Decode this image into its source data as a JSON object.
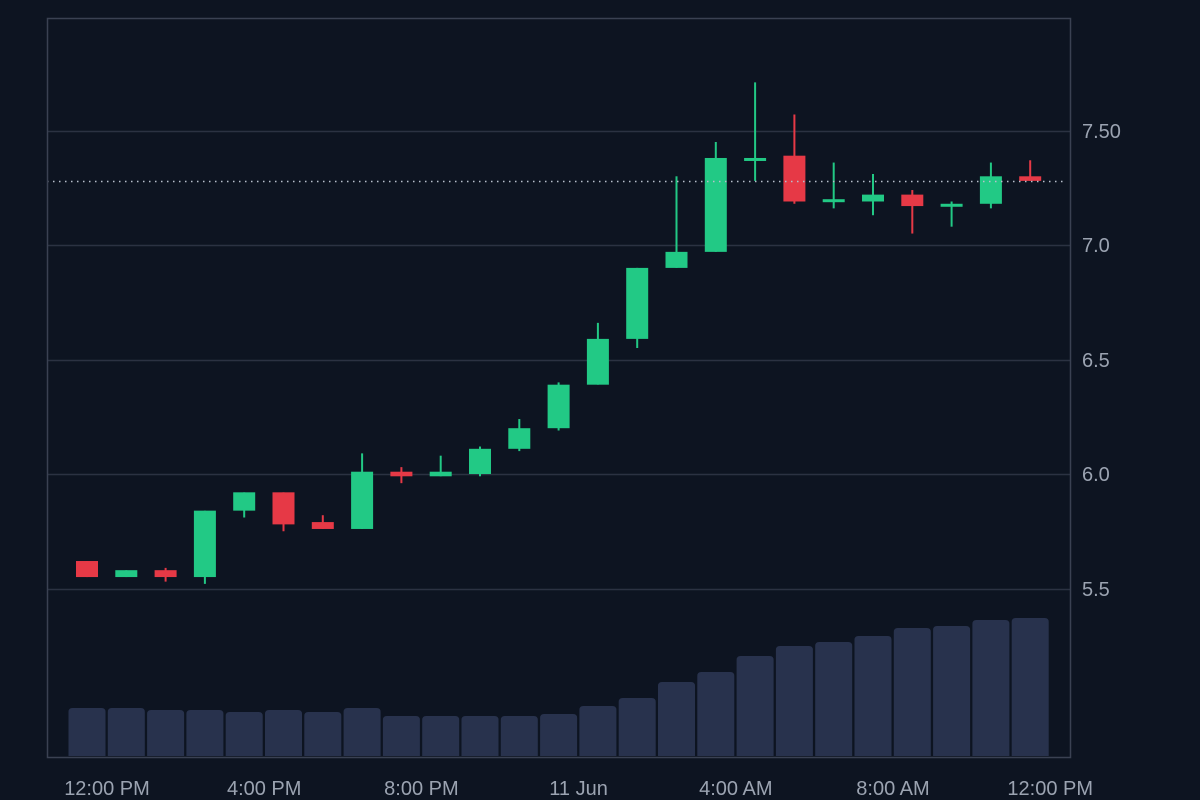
{
  "colors": {
    "background": "#0d1421",
    "frame": "#3a4152",
    "grid": "#2b3242",
    "axis_text": "#9ba3b1",
    "up": "#22c985",
    "down": "#e63946",
    "volume": "#28324d",
    "last_price_line": "#b8bfcc"
  },
  "chart_data": {
    "type": "candlestick",
    "title": "",
    "xlabel": "",
    "ylabel": "",
    "ylim": [
      5.0,
      8.0
    ],
    "last_price": 7.28,
    "grid": true,
    "y_axis_position": "right",
    "y_ticks": [
      {
        "value": 5.5,
        "label": "5.5"
      },
      {
        "value": 6.0,
        "label": "6.0"
      },
      {
        "value": 6.5,
        "label": "6.5"
      },
      {
        "value": 7.0,
        "label": "7.0"
      },
      {
        "value": 7.5,
        "label": "7.50"
      }
    ],
    "x_ticks": [
      {
        "index": 1,
        "label": "12:00 PM"
      },
      {
        "index": 5,
        "label": "4:00 PM"
      },
      {
        "index": 9,
        "label": "8:00 PM"
      },
      {
        "index": 13,
        "label": "11 Jun"
      },
      {
        "index": 17,
        "label": "4:00 AM"
      },
      {
        "index": 21,
        "label": "8:00 AM"
      },
      {
        "index": 25,
        "label": "12:00 PM"
      }
    ],
    "candles": [
      {
        "o": 5.62,
        "h": 5.62,
        "l": 5.55,
        "c": 5.55
      },
      {
        "o": 5.55,
        "h": 5.58,
        "l": 5.55,
        "c": 5.58
      },
      {
        "o": 5.58,
        "h": 5.59,
        "l": 5.53,
        "c": 5.55
      },
      {
        "o": 5.55,
        "h": 5.84,
        "l": 5.52,
        "c": 5.84
      },
      {
        "o": 5.84,
        "h": 5.92,
        "l": 5.81,
        "c": 5.92
      },
      {
        "o": 5.92,
        "h": 5.92,
        "l": 5.75,
        "c": 5.78
      },
      {
        "o": 5.79,
        "h": 5.82,
        "l": 5.76,
        "c": 5.76
      },
      {
        "o": 5.76,
        "h": 6.09,
        "l": 5.76,
        "c": 6.01
      },
      {
        "o": 6.01,
        "h": 6.03,
        "l": 5.96,
        "c": 5.99
      },
      {
        "o": 5.99,
        "h": 6.08,
        "l": 5.99,
        "c": 6.01
      },
      {
        "o": 6.0,
        "h": 6.12,
        "l": 5.99,
        "c": 6.11
      },
      {
        "o": 6.11,
        "h": 6.24,
        "l": 6.1,
        "c": 6.2
      },
      {
        "o": 6.2,
        "h": 6.4,
        "l": 6.19,
        "c": 6.39
      },
      {
        "o": 6.39,
        "h": 6.66,
        "l": 6.39,
        "c": 6.59
      },
      {
        "o": 6.59,
        "h": 6.9,
        "l": 6.55,
        "c": 6.9
      },
      {
        "o": 6.9,
        "h": 7.3,
        "l": 6.9,
        "c": 6.97
      },
      {
        "o": 6.97,
        "h": 7.45,
        "l": 6.97,
        "c": 7.38
      },
      {
        "o": 7.37,
        "h": 7.71,
        "l": 7.28,
        "c": 7.38
      },
      {
        "o": 7.39,
        "h": 7.57,
        "l": 7.18,
        "c": 7.19
      },
      {
        "o": 7.19,
        "h": 7.36,
        "l": 7.16,
        "c": 7.2
      },
      {
        "o": 7.19,
        "h": 7.31,
        "l": 7.13,
        "c": 7.22
      },
      {
        "o": 7.22,
        "h": 7.24,
        "l": 7.05,
        "c": 7.17
      },
      {
        "o": 7.17,
        "h": 7.19,
        "l": 7.08,
        "c": 7.18
      },
      {
        "o": 7.18,
        "h": 7.36,
        "l": 7.16,
        "c": 7.3
      },
      {
        "o": 7.3,
        "h": 7.37,
        "l": 7.28,
        "c": 7.28
      }
    ],
    "volumes": [
      48,
      48,
      46,
      46,
      44,
      46,
      44,
      48,
      40,
      40,
      40,
      40,
      42,
      50,
      58,
      74,
      84,
      100,
      110,
      114,
      120,
      128,
      130,
      136,
      138
    ]
  }
}
